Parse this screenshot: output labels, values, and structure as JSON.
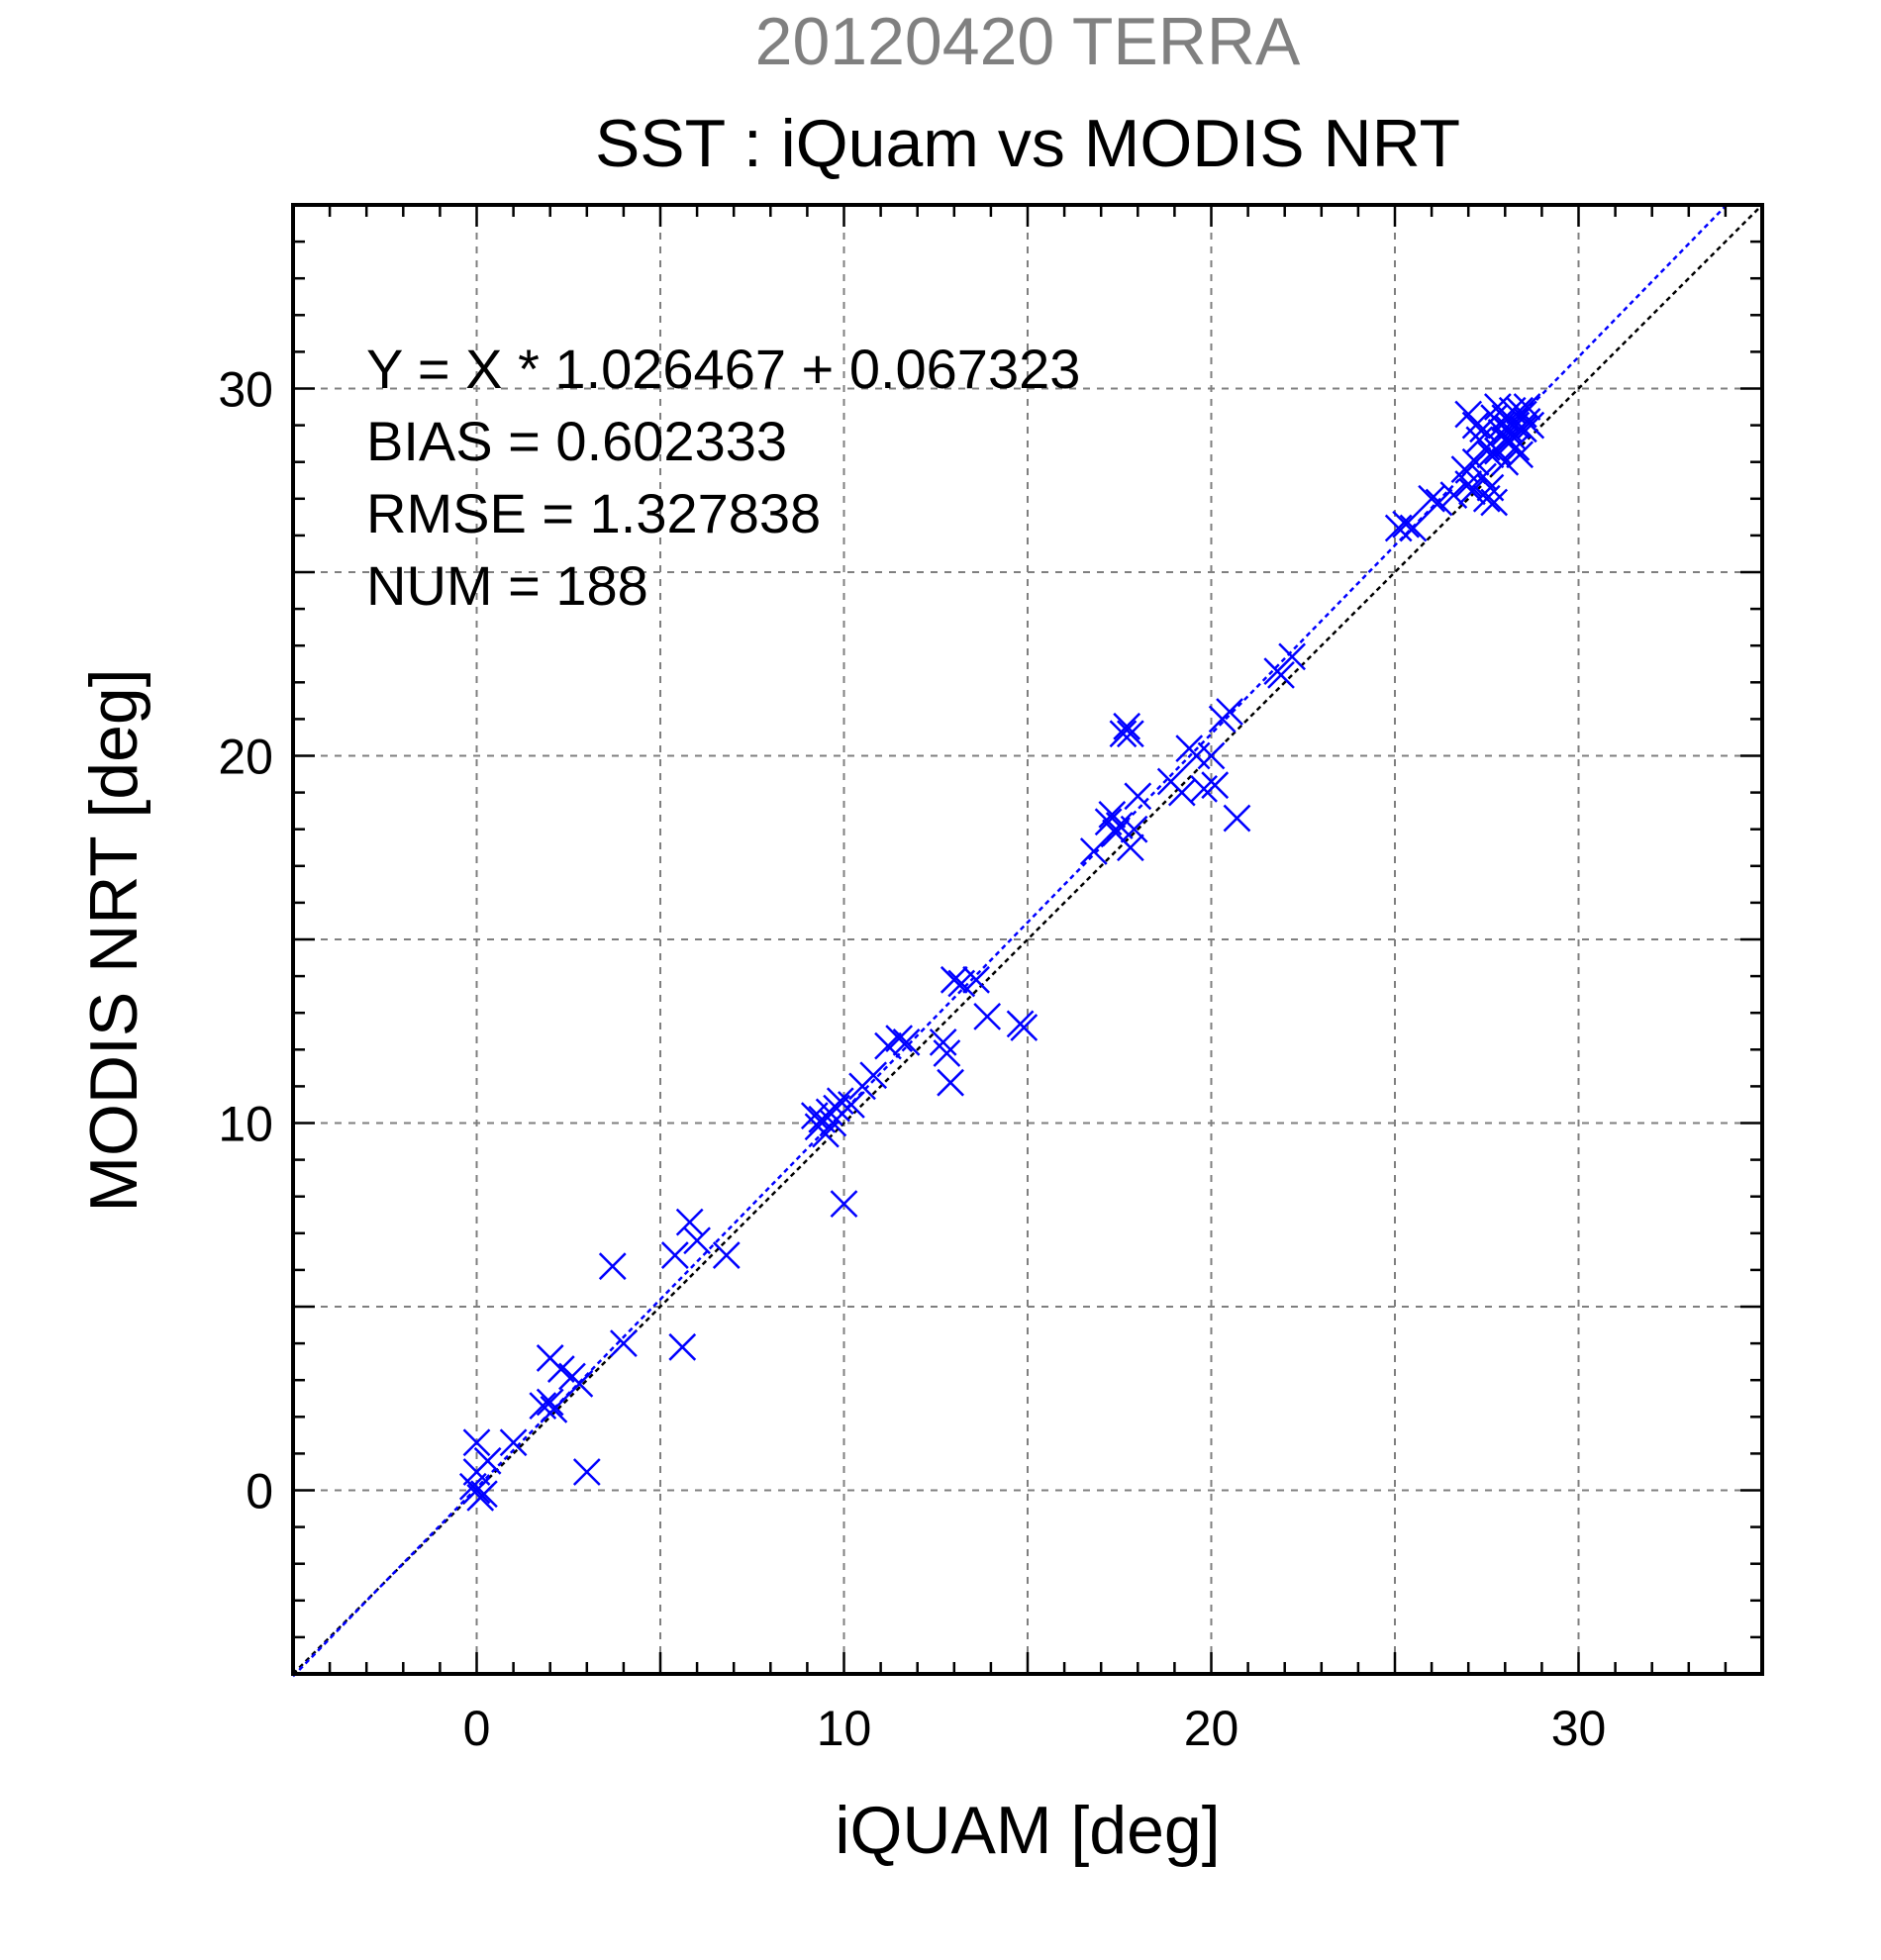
{
  "chart_data": {
    "type": "scatter",
    "supertitle": "20120420 TERRA",
    "title": "SST : iQuam vs MODIS NRT",
    "xlabel": "iQUAM [deg]",
    "ylabel": "MODIS NRT [deg]",
    "xlim": [
      -5,
      35
    ],
    "ylim": [
      -5,
      35
    ],
    "xticks": [
      0,
      10,
      20,
      30
    ],
    "yticks": [
      0,
      10,
      20,
      30
    ],
    "grid": true,
    "colors": {
      "points": "#0000ff",
      "fit_line": "#0000ff",
      "identity_line": "#000000",
      "supertitle": "#808080"
    },
    "stats": {
      "equation": "Y = X * 1.026467 + 0.067323",
      "bias": "BIAS = 0.602333",
      "rmse": "RMSE = 1.327838",
      "num": "NUM = 188"
    },
    "fit": {
      "slope": 1.026467,
      "intercept": 0.067323
    },
    "points": [
      [
        0.0,
        0.0
      ],
      [
        0.1,
        -0.2
      ],
      [
        -0.1,
        0.1
      ],
      [
        0.2,
        -0.1
      ],
      [
        0.0,
        1.3
      ],
      [
        0.3,
        0.8
      ],
      [
        0.0,
        0.5
      ],
      [
        1.0,
        1.3
      ],
      [
        1.8,
        2.3
      ],
      [
        2.0,
        2.4
      ],
      [
        2.1,
        2.2
      ],
      [
        2.0,
        3.6
      ],
      [
        2.3,
        3.3
      ],
      [
        2.6,
        3.1
      ],
      [
        2.8,
        2.9
      ],
      [
        3.0,
        0.5
      ],
      [
        3.7,
        6.1
      ],
      [
        4.0,
        4.0
      ],
      [
        5.4,
        6.4
      ],
      [
        5.6,
        3.9
      ],
      [
        5.8,
        7.3
      ],
      [
        6.0,
        6.8
      ],
      [
        6.8,
        6.4
      ],
      [
        9.2,
        10.2
      ],
      [
        9.3,
        9.9
      ],
      [
        9.4,
        10.1
      ],
      [
        9.5,
        9.7
      ],
      [
        9.6,
        10.3
      ],
      [
        9.7,
        10.0
      ],
      [
        9.8,
        10.4
      ],
      [
        9.9,
        10.6
      ],
      [
        10.0,
        7.8
      ],
      [
        10.2,
        10.5
      ],
      [
        10.5,
        11.0
      ],
      [
        10.8,
        11.3
      ],
      [
        11.2,
        12.1
      ],
      [
        11.5,
        12.3
      ],
      [
        11.7,
        12.2
      ],
      [
        12.7,
        12.2
      ],
      [
        12.8,
        11.9
      ],
      [
        12.9,
        11.1
      ],
      [
        13.0,
        13.9
      ],
      [
        13.2,
        13.8
      ],
      [
        13.6,
        13.9
      ],
      [
        13.9,
        12.9
      ],
      [
        14.8,
        12.7
      ],
      [
        14.9,
        12.6
      ],
      [
        16.8,
        17.4
      ],
      [
        17.2,
        18.2
      ],
      [
        17.3,
        18.4
      ],
      [
        17.4,
        17.9
      ],
      [
        17.5,
        18.1
      ],
      [
        17.6,
        20.6
      ],
      [
        17.7,
        20.8
      ],
      [
        17.8,
        20.6
      ],
      [
        17.8,
        17.5
      ],
      [
        17.9,
        18.0
      ],
      [
        18.0,
        18.9
      ],
      [
        18.9,
        19.3
      ],
      [
        19.2,
        19.0
      ],
      [
        19.4,
        20.2
      ],
      [
        19.6,
        20.0
      ],
      [
        19.8,
        19.1
      ],
      [
        20.0,
        20.0
      ],
      [
        20.1,
        19.2
      ],
      [
        20.3,
        21.0
      ],
      [
        20.5,
        21.2
      ],
      [
        20.7,
        18.3
      ],
      [
        21.8,
        22.3
      ],
      [
        21.9,
        22.2
      ],
      [
        22.2,
        22.7
      ],
      [
        25.1,
        26.2
      ],
      [
        25.3,
        26.3
      ],
      [
        25.5,
        26.2
      ],
      [
        26.0,
        27.0
      ],
      [
        26.2,
        26.9
      ],
      [
        26.6,
        27.1
      ],
      [
        26.9,
        27.8
      ],
      [
        27.0,
        27.4
      ],
      [
        27.1,
        27.2
      ],
      [
        27.2,
        28.0
      ],
      [
        27.3,
        28.6
      ],
      [
        27.4,
        28.9
      ],
      [
        27.5,
        27.0
      ],
      [
        27.6,
        27.3
      ],
      [
        27.7,
        26.9
      ],
      [
        27.8,
        28.3
      ],
      [
        27.9,
        28.8
      ],
      [
        28.0,
        29.2
      ],
      [
        28.1,
        28.5
      ],
      [
        28.2,
        29.4
      ],
      [
        28.3,
        29.0
      ],
      [
        28.4,
        28.2
      ],
      [
        28.5,
        29.3
      ],
      [
        28.6,
        29.1
      ],
      [
        27.0,
        29.3
      ],
      [
        27.2,
        29.0
      ],
      [
        27.5,
        28.4
      ],
      [
        27.8,
        29.5
      ],
      [
        28.0,
        28.0
      ],
      [
        28.2,
        28.7
      ],
      [
        28.4,
        29.4
      ],
      [
        28.7,
        29.0
      ],
      [
        27.4,
        27.6
      ],
      [
        27.6,
        28.2
      ],
      [
        27.9,
        29.0
      ],
      [
        28.1,
        28.9
      ],
      [
        28.3,
        28.4
      ],
      [
        28.5,
        28.9
      ],
      [
        27.7,
        29.2
      ],
      [
        28.6,
        29.5
      ],
      [
        28.0,
        28.6
      ]
    ]
  }
}
